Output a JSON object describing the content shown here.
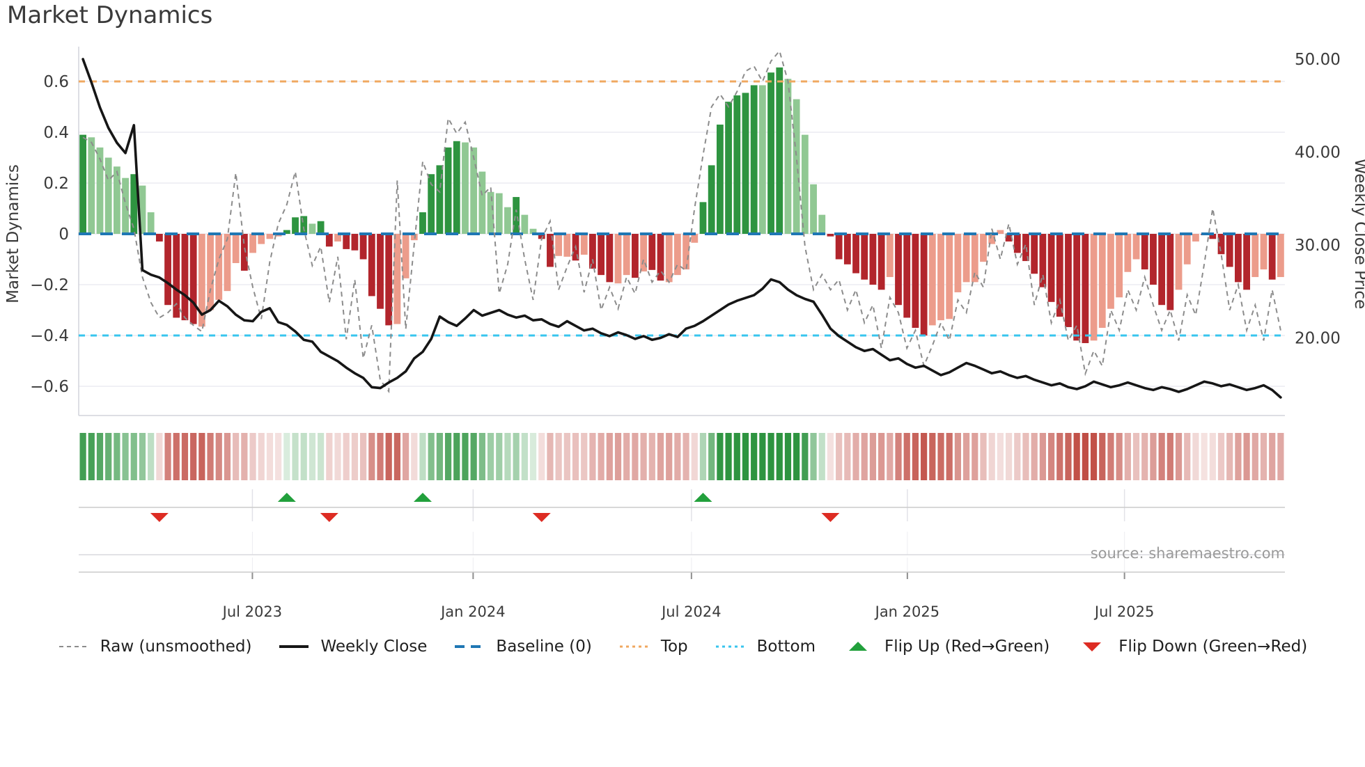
{
  "title": "Market Dynamics",
  "source_note": "source: sharemaestro.com",
  "y_axis_left": {
    "title": "Market Dynamics",
    "ticks": [
      {
        "v": 0.6,
        "label": "0.6"
      },
      {
        "v": 0.4,
        "label": "0.4"
      },
      {
        "v": 0.2,
        "label": "0.2"
      },
      {
        "v": 0.0,
        "label": "0"
      },
      {
        "v": -0.2,
        "label": "−0.2"
      },
      {
        "v": -0.4,
        "label": "−0.4"
      },
      {
        "v": -0.6,
        "label": "−0.6"
      }
    ]
  },
  "y_axis_right": {
    "title": "Weekly Close Price",
    "min": 11.65,
    "max": 50.75,
    "ticks": [
      {
        "v": 50,
        "label": "50.00"
      },
      {
        "v": 40,
        "label": "40.00"
      },
      {
        "v": 30,
        "label": "30.00"
      },
      {
        "v": 20,
        "label": "20.00"
      }
    ]
  },
  "x_axis": {
    "ticks": [
      {
        "f": 0.144,
        "label": "Jul 2023"
      },
      {
        "f": 0.327,
        "label": "Jan 2024"
      },
      {
        "f": 0.508,
        "label": "Jul 2024"
      },
      {
        "f": 0.687,
        "label": "Jan 2025"
      },
      {
        "f": 0.867,
        "label": "Jul 2025"
      }
    ]
  },
  "colors": {
    "bar_green_strong": "#2e9440",
    "bar_green_weak": "#90c893",
    "bar_red_strong": "#b2252c",
    "bar_red_weak": "#ec9c8b",
    "heat_green": "#2e9440",
    "heat_red": "#bf4a41",
    "baseline_blue": "#1f77b4",
    "top_orange": "#f0a860",
    "bottom_cyan": "#38c5ee",
    "weekly_close_black": "#161616",
    "raw_gray": "#8c8c8c",
    "flip_up_green": "#22a03c",
    "flip_down_red": "#dd2c23",
    "grid": "#e7e8ef",
    "spine": "#d2d3dc",
    "lane_line": "#cccccc",
    "text_dark": "#3a3a3a",
    "text_gray": "#9a9a9a"
  },
  "legend": [
    {
      "label": "Raw (unsmoothed)",
      "swatch": "dash",
      "color": "#8c8c8c",
      "dash": "6 5",
      "width": 2
    },
    {
      "label": "Weekly Close",
      "swatch": "line",
      "color": "#161616",
      "dash": "",
      "width": 4
    },
    {
      "label": "Baseline (0)",
      "swatch": "dash",
      "color": "#1f77b4",
      "dash": "14 9",
      "width": 4
    },
    {
      "label": "Top",
      "swatch": "dash",
      "color": "#f0a860",
      "dash": "4 5",
      "width": 3
    },
    {
      "label": "Bottom",
      "swatch": "dash",
      "color": "#38c5ee",
      "dash": "4 5",
      "width": 3
    },
    {
      "label": "Flip Up (Red→Green)",
      "swatch": "tri-up",
      "color": "#22a03c",
      "dash": "",
      "width": 0
    },
    {
      "label": "Flip Down (Green→Red)",
      "swatch": "tri-down",
      "color": "#dd2c23",
      "dash": "",
      "width": 0
    }
  ],
  "chart_data": {
    "type": "bar",
    "subtype": "weekly momentum bars + dual-axis lines + heat strip + flip markers",
    "n_weeks": 142,
    "ylim_left": [
      -0.715,
      0.715
    ],
    "baseline": 0,
    "top_line": 0.6,
    "bottom_line": -0.4,
    "bar_values": [
      0.39,
      0.38,
      0.34,
      0.3,
      0.265,
      0.22,
      0.235,
      0.19,
      0.085,
      -0.03,
      -0.28,
      -0.33,
      -0.34,
      -0.355,
      -0.365,
      -0.3,
      -0.26,
      -0.225,
      -0.115,
      -0.145,
      -0.075,
      -0.04,
      -0.02,
      -0.01,
      0.015,
      0.065,
      0.07,
      0.04,
      0.05,
      -0.05,
      -0.03,
      -0.06,
      -0.065,
      -0.1,
      -0.245,
      -0.295,
      -0.36,
      -0.355,
      -0.175,
      -0.025,
      0.085,
      0.235,
      0.27,
      0.34,
      0.365,
      0.36,
      0.34,
      0.245,
      0.165,
      0.16,
      0.105,
      0.145,
      0.075,
      0.02,
      -0.02,
      -0.13,
      -0.087,
      -0.09,
      -0.105,
      -0.082,
      -0.137,
      -0.162,
      -0.19,
      -0.195,
      -0.162,
      -0.173,
      -0.148,
      -0.142,
      -0.184,
      -0.19,
      -0.162,
      -0.14,
      -0.035,
      0.125,
      0.27,
      0.43,
      0.52,
      0.545,
      0.555,
      0.585,
      0.585,
      0.635,
      0.655,
      0.61,
      0.53,
      0.39,
      0.195,
      0.075,
      -0.01,
      -0.1,
      -0.12,
      -0.155,
      -0.18,
      -0.2,
      -0.22,
      -0.17,
      -0.28,
      -0.33,
      -0.37,
      -0.4,
      -0.36,
      -0.34,
      -0.335,
      -0.23,
      -0.19,
      -0.19,
      -0.11,
      -0.04,
      0.015,
      -0.03,
      -0.075,
      -0.107,
      -0.157,
      -0.21,
      -0.268,
      -0.326,
      -0.367,
      -0.42,
      -0.43,
      -0.42,
      -0.37,
      -0.295,
      -0.25,
      -0.15,
      -0.1,
      -0.14,
      -0.2,
      -0.28,
      -0.3,
      -0.22,
      -0.12,
      -0.03,
      -0.005,
      -0.02,
      -0.08,
      -0.13,
      -0.19,
      -0.22,
      -0.17,
      -0.14,
      -0.18,
      -0.17
    ],
    "bar_strength": "100000100111110000010000111011011111100011111000000100110010111001011000011111110110000011111110111100000000011111111110000001111000111111001 0",
    "regime": "GGGGGGGGGRRRRRRRRRRRRRRRGGGGGRRRRRRRRRRRGGGGGGGGGGGGGGRRRRRRRRRRRRRRRRRRRGGGGGGGGGGGGGGGRRRRRRRRRRRRRRRRRRRRRRRRRRRRRRRRRRRRRRRRRRRRRRRRRRRR",
    "raw_values": [
      0.38,
      0.36,
      0.295,
      0.21,
      0.245,
      0.12,
      0.02,
      -0.17,
      -0.27,
      -0.33,
      -0.31,
      -0.275,
      -0.33,
      -0.36,
      -0.385,
      -0.22,
      -0.1,
      -0.02,
      0.24,
      -0.05,
      -0.21,
      -0.335,
      -0.11,
      0.04,
      0.115,
      0.245,
      0.02,
      -0.125,
      -0.05,
      -0.27,
      -0.09,
      -0.415,
      -0.18,
      -0.49,
      -0.36,
      -0.575,
      -0.62,
      0.21,
      -0.375,
      -0.04,
      0.285,
      0.195,
      0.165,
      0.455,
      0.395,
      0.44,
      0.3,
      0.15,
      0.185,
      -0.235,
      -0.12,
      0.095,
      -0.1,
      -0.26,
      -0.02,
      0.05,
      -0.22,
      -0.13,
      -0.05,
      -0.23,
      -0.1,
      -0.3,
      -0.21,
      -0.295,
      -0.17,
      -0.235,
      -0.1,
      -0.19,
      -0.145,
      -0.19,
      -0.12,
      -0.145,
      0.1,
      0.31,
      0.5,
      0.55,
      0.5,
      0.56,
      0.64,
      0.66,
      0.6,
      0.68,
      0.72,
      0.6,
      0.3,
      -0.05,
      -0.22,
      -0.16,
      -0.22,
      -0.18,
      -0.3,
      -0.22,
      -0.35,
      -0.28,
      -0.45,
      -0.25,
      -0.31,
      -0.45,
      -0.38,
      -0.52,
      -0.44,
      -0.35,
      -0.42,
      -0.26,
      -0.31,
      -0.15,
      -0.21,
      0.02,
      -0.1,
      0.04,
      -0.12,
      -0.04,
      -0.28,
      -0.16,
      -0.35,
      -0.26,
      -0.42,
      -0.36,
      -0.55,
      -0.46,
      -0.52,
      -0.3,
      -0.38,
      -0.22,
      -0.3,
      -0.17,
      -0.28,
      -0.38,
      -0.3,
      -0.42,
      -0.24,
      -0.32,
      -0.12,
      0.1,
      -0.08,
      -0.3,
      -0.2,
      -0.38,
      -0.28,
      -0.42,
      -0.22,
      -0.38
    ],
    "weekly_close": [
      50.0,
      47.5,
      44.8,
      42.6,
      41.0,
      39.9,
      42.9,
      27.3,
      26.8,
      26.5,
      25.9,
      25.2,
      24.6,
      23.8,
      22.5,
      23.0,
      24.0,
      23.4,
      22.5,
      21.9,
      21.8,
      22.8,
      23.2,
      21.7,
      21.4,
      20.7,
      19.8,
      19.6,
      18.5,
      18.0,
      17.5,
      16.8,
      16.2,
      15.7,
      14.7,
      14.6,
      15.2,
      15.7,
      16.4,
      17.8,
      18.5,
      19.9,
      22.3,
      21.7,
      21.3,
      22.1,
      23.0,
      22.4,
      22.7,
      23.0,
      22.5,
      22.2,
      22.4,
      21.9,
      22.0,
      21.5,
      21.2,
      21.8,
      21.3,
      20.8,
      21.0,
      20.5,
      20.2,
      20.6,
      20.3,
      19.9,
      20.2,
      19.8,
      20.0,
      20.4,
      20.1,
      21.0,
      21.3,
      21.8,
      22.4,
      23.0,
      23.6,
      24.0,
      24.3,
      24.6,
      25.3,
      26.3,
      26.0,
      25.2,
      24.6,
      24.2,
      23.9,
      22.5,
      21.0,
      20.2,
      19.6,
      19.0,
      18.6,
      18.8,
      18.2,
      17.6,
      17.8,
      17.2,
      16.8,
      17.0,
      16.5,
      16.0,
      16.3,
      16.8,
      17.3,
      17.0,
      16.6,
      16.2,
      16.4,
      16.0,
      15.7,
      15.9,
      15.5,
      15.2,
      14.9,
      15.1,
      14.7,
      14.5,
      14.8,
      15.3,
      15.0,
      14.7,
      14.9,
      15.2,
      14.9,
      14.6,
      14.4,
      14.7,
      14.5,
      14.2,
      14.5,
      14.9,
      15.3,
      15.1,
      14.8,
      15.0,
      14.7,
      14.4,
      14.6,
      14.9,
      14.4,
      13.6
    ],
    "flip_up_weeks": [
      24,
      40,
      73
    ],
    "flip_down_weeks": [
      9,
      29,
      54,
      88
    ]
  }
}
